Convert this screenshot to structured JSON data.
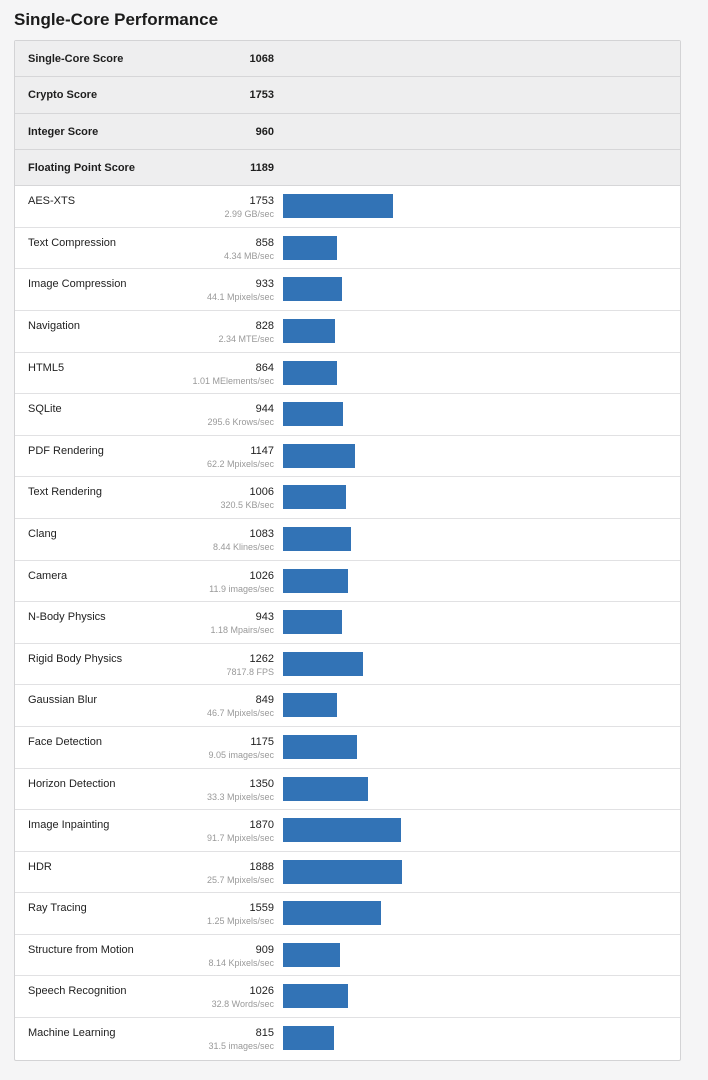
{
  "title": "Single-Core Performance",
  "bar_color": "#3273b6",
  "bar_scale_max": 1888,
  "summary": [
    {
      "label": "Single-Core Score",
      "value": "1068"
    },
    {
      "label": "Crypto Score",
      "value": "1753"
    },
    {
      "label": "Integer Score",
      "value": "960"
    },
    {
      "label": "Floating Point Score",
      "value": "1189"
    }
  ],
  "benchmarks": [
    {
      "name": "AES-XTS",
      "score": 1753,
      "rate": "2.99 GB/sec"
    },
    {
      "name": "Text Compression",
      "score": 858,
      "rate": "4.34 MB/sec"
    },
    {
      "name": "Image Compression",
      "score": 933,
      "rate": "44.1 Mpixels/sec"
    },
    {
      "name": "Navigation",
      "score": 828,
      "rate": "2.34 MTE/sec"
    },
    {
      "name": "HTML5",
      "score": 864,
      "rate": "1.01 MElements/sec"
    },
    {
      "name": "SQLite",
      "score": 944,
      "rate": "295.6 Krows/sec"
    },
    {
      "name": "PDF Rendering",
      "score": 1147,
      "rate": "62.2 Mpixels/sec"
    },
    {
      "name": "Text Rendering",
      "score": 1006,
      "rate": "320.5 KB/sec"
    },
    {
      "name": "Clang",
      "score": 1083,
      "rate": "8.44 Klines/sec"
    },
    {
      "name": "Camera",
      "score": 1026,
      "rate": "11.9 images/sec"
    },
    {
      "name": "N-Body Physics",
      "score": 943,
      "rate": "1.18 Mpairs/sec"
    },
    {
      "name": "Rigid Body Physics",
      "score": 1262,
      "rate": "7817.8 FPS"
    },
    {
      "name": "Gaussian Blur",
      "score": 849,
      "rate": "46.7 Mpixels/sec"
    },
    {
      "name": "Face Detection",
      "score": 1175,
      "rate": "9.05 images/sec"
    },
    {
      "name": "Horizon Detection",
      "score": 1350,
      "rate": "33.3 Mpixels/sec"
    },
    {
      "name": "Image Inpainting",
      "score": 1870,
      "rate": "91.7 Mpixels/sec"
    },
    {
      "name": "HDR",
      "score": 1888,
      "rate": "25.7 Mpixels/sec"
    },
    {
      "name": "Ray Tracing",
      "score": 1559,
      "rate": "1.25 Mpixels/sec"
    },
    {
      "name": "Structure from Motion",
      "score": 909,
      "rate": "8.14 Kpixels/sec"
    },
    {
      "name": "Speech Recognition",
      "score": 1026,
      "rate": "32.8 Words/sec"
    },
    {
      "name": "Machine Learning",
      "score": 815,
      "rate": "31.5 images/sec"
    }
  ]
}
